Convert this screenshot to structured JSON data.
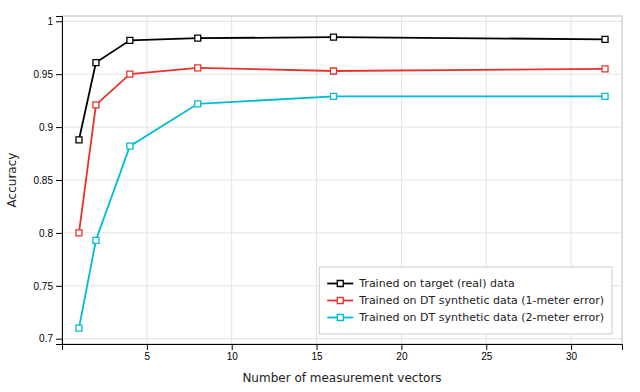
{
  "chart_data": {
    "type": "line",
    "x": [
      1,
      2,
      4,
      8,
      16,
      32
    ],
    "series": [
      {
        "name": "Trained on target (real) data",
        "color": "#000000",
        "marker": "square",
        "values": [
          0.888,
          0.961,
          0.982,
          0.984,
          0.985,
          0.983
        ]
      },
      {
        "name": "Trained on DT synthetic data (1-meter error)",
        "color": "#e8322a",
        "marker": "square",
        "values": [
          0.8,
          0.921,
          0.95,
          0.956,
          0.953,
          0.955
        ]
      },
      {
        "name": "Trained on DT synthetic data (2-meter error)",
        "color": "#00bcd4",
        "marker": "square",
        "values": [
          0.71,
          0.793,
          0.882,
          0.922,
          0.929,
          0.929
        ]
      }
    ],
    "xlabel": "Number of measurement vectors",
    "ylabel": "Accuracy",
    "xlim": [
      0,
      33
    ],
    "ylim": [
      0.695,
      1.005
    ],
    "xticks": [
      5,
      10,
      15,
      20,
      25,
      30
    ],
    "yticks": [
      0.7,
      0.75,
      0.8,
      0.85,
      0.9,
      0.95,
      1
    ],
    "grid": true,
    "legend": "lower right"
  }
}
